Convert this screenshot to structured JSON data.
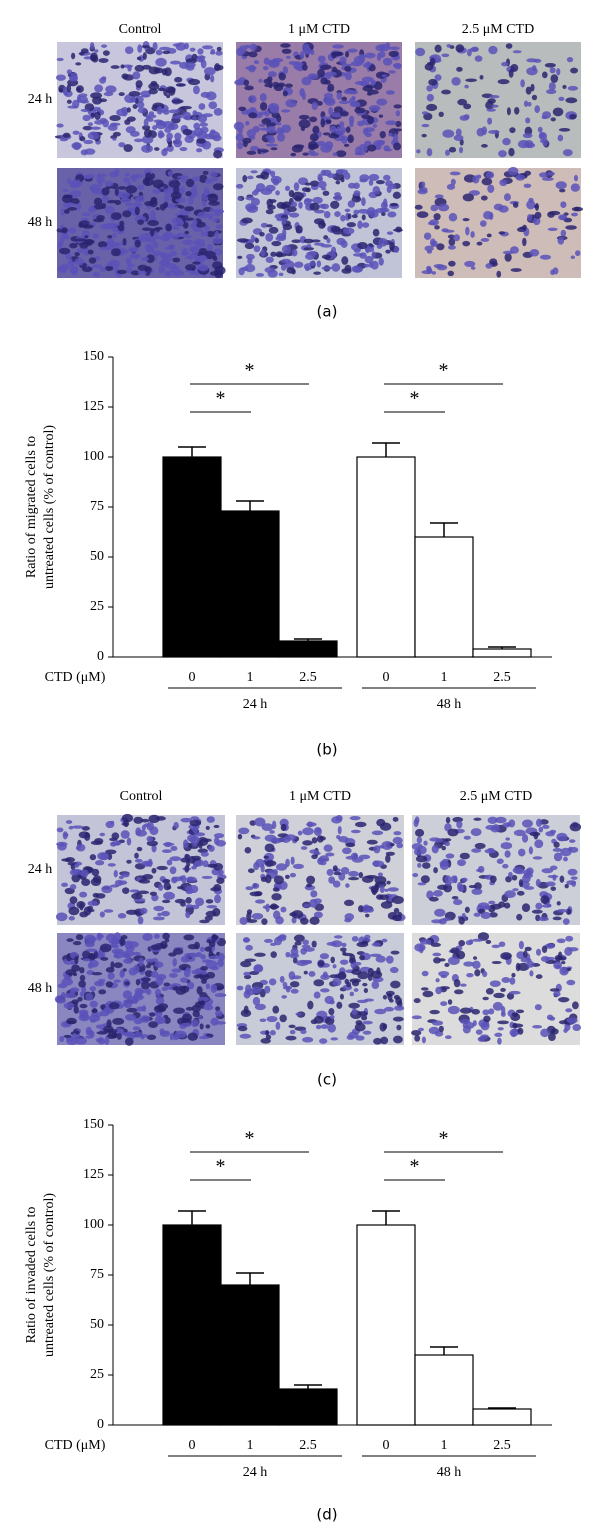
{
  "panel_labels": [
    "(a)",
    "(b)",
    "(c)",
    "(d)"
  ],
  "micrographs": [
    {
      "columns": [
        "Control",
        "1 μM CTD",
        "2.5 μM CTD"
      ],
      "rows": [
        "24 h",
        "48 h"
      ]
    },
    {
      "columns": [
        "Control",
        "1 μM CTD",
        "2.5 μM CTD"
      ],
      "rows": [
        "24 h",
        "48 h"
      ]
    }
  ],
  "chart_data": [
    {
      "type": "bar",
      "ylabel": [
        "Ratio of migrated cells to",
        "untreated cells (% of control)"
      ],
      "xlabel": "CTD (μM)",
      "categories": [
        "0",
        "1",
        "2.5"
      ],
      "series": [
        {
          "name": "24 h",
          "color": "#000000",
          "values": [
            100,
            73,
            8
          ],
          "errors": [
            5,
            5,
            1
          ]
        },
        {
          "name": "48 h",
          "color": "#ffffff",
          "values": [
            100,
            60,
            4
          ],
          "errors": [
            7,
            7,
            1
          ]
        }
      ],
      "ylim": [
        0,
        150
      ],
      "yticks": [
        0,
        25,
        50,
        75,
        100,
        125,
        150
      ],
      "significance": [
        "*",
        "*",
        "*",
        "*"
      ]
    },
    {
      "type": "bar",
      "ylabel": [
        "Ratio of invaded cells to",
        "untreated cells (% of control)"
      ],
      "xlabel": "CTD (μM)",
      "categories": [
        "0",
        "1",
        "2.5"
      ],
      "series": [
        {
          "name": "24 h",
          "color": "#000000",
          "values": [
            100,
            70,
            18
          ],
          "errors": [
            7,
            6,
            2
          ]
        },
        {
          "name": "48 h",
          "color": "#ffffff",
          "values": [
            100,
            35,
            8
          ],
          "errors": [
            7,
            4,
            0.5
          ]
        }
      ],
      "ylim": [
        0,
        150
      ],
      "yticks": [
        0,
        25,
        50,
        75,
        100,
        125,
        150
      ],
      "significance": [
        "*",
        "*",
        "*",
        "*"
      ]
    }
  ]
}
